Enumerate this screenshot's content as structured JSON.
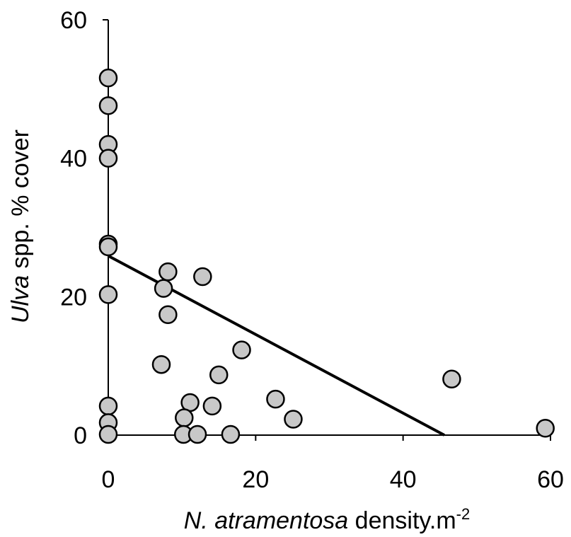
{
  "chart_data": {
    "type": "scatter",
    "xlabel_italic": "N. atramentosa",
    "xlabel_rest": " density.m",
    "xlabel_sup": "-2",
    "ylabel_italic": "Ulva",
    "ylabel_rest": " spp. % cover",
    "xlim": [
      0,
      60
    ],
    "ylim": [
      0,
      60
    ],
    "x_ticks": [
      0,
      20,
      40,
      60
    ],
    "y_ticks": [
      0,
      20,
      40,
      60
    ],
    "points": [
      {
        "x": 0,
        "y": 51.6
      },
      {
        "x": 0,
        "y": 47.6
      },
      {
        "x": 0,
        "y": 42.0
      },
      {
        "x": 0,
        "y": 40.0
      },
      {
        "x": 0,
        "y": 27.6
      },
      {
        "x": 0,
        "y": 27.2
      },
      {
        "x": 0,
        "y": 20.3
      },
      {
        "x": 0,
        "y": 4.2
      },
      {
        "x": 0,
        "y": 1.8
      },
      {
        "x": 0,
        "y": 0.1
      },
      {
        "x": 8.1,
        "y": 23.6
      },
      {
        "x": 7.5,
        "y": 21.2
      },
      {
        "x": 12.8,
        "y": 22.9
      },
      {
        "x": 8.1,
        "y": 17.4
      },
      {
        "x": 7.2,
        "y": 10.2
      },
      {
        "x": 18.1,
        "y": 12.3
      },
      {
        "x": 15.0,
        "y": 8.7
      },
      {
        "x": 22.7,
        "y": 5.2
      },
      {
        "x": 11.1,
        "y": 4.7
      },
      {
        "x": 14.1,
        "y": 4.2
      },
      {
        "x": 10.3,
        "y": 2.5
      },
      {
        "x": 25.1,
        "y": 2.3
      },
      {
        "x": 10.2,
        "y": 0.1
      },
      {
        "x": 12.1,
        "y": 0.1
      },
      {
        "x": 16.6,
        "y": 0.1
      },
      {
        "x": 46.6,
        "y": 8.1
      },
      {
        "x": 59.3,
        "y": 1.0
      }
    ],
    "fit_line": {
      "x": [
        0,
        45.6
      ],
      "y": [
        25.9,
        0
      ]
    },
    "grid": false,
    "legend": "none"
  }
}
